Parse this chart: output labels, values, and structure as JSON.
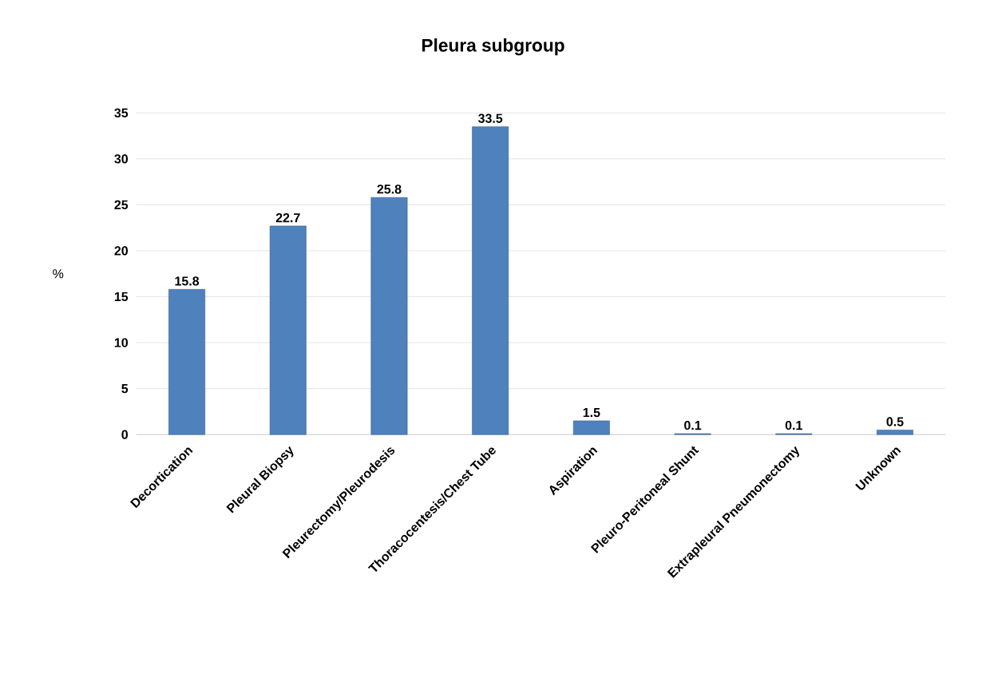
{
  "chart_data": {
    "type": "bar",
    "title": "Pleura subgroup",
    "ylabel": "%",
    "categories": [
      "Decortication",
      "Pleural Biopsy",
      "Pleurectomy/Pleurodesis",
      "Thoracocentesis/Chest Tube",
      "Aspiration",
      "Pleuro-Peritoneal Shunt",
      "Extrapleural Pneumonectomy",
      "Unknown"
    ],
    "values": [
      15.8,
      22.7,
      25.8,
      33.5,
      1.5,
      0.1,
      0.1,
      0.5
    ],
    "color": "#4f81bd",
    "ylim": [
      0,
      35
    ],
    "yticks": [
      0,
      5,
      10,
      15,
      20,
      25,
      30,
      35
    ],
    "grid": "y",
    "data_labels": true
  }
}
